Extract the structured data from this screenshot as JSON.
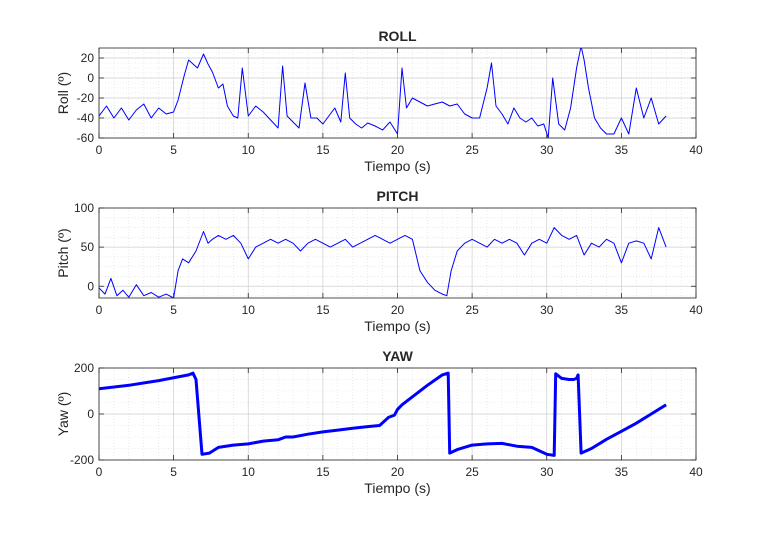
{
  "chart_data": [
    {
      "type": "line",
      "title": "ROLL",
      "xlabel": "Tiempo (s)",
      "ylabel": "Roll (º)",
      "xlim": [
        0,
        40
      ],
      "ylim": [
        -60,
        30
      ],
      "xticks": [
        0,
        5,
        10,
        15,
        20,
        25,
        30,
        35,
        40
      ],
      "yticks": [
        -60,
        -40,
        -20,
        0,
        20
      ],
      "grid": "major and minor dotted",
      "line_color": "#0000ff",
      "line_width": 1,
      "series": [
        {
          "x": [
            0,
            0.5,
            1,
            1.5,
            2,
            2.5,
            3,
            3.5,
            4,
            4.5,
            5,
            5.3,
            5.7,
            6,
            6.3,
            6.6,
            7,
            7.3,
            7.6,
            8,
            8.3,
            8.6,
            9,
            9.3,
            9.6,
            10,
            10.5,
            11,
            11.5,
            12,
            12.3,
            12.6,
            13,
            13.4,
            13.8,
            14.2,
            14.6,
            15,
            15.4,
            15.8,
            16.2,
            16.5,
            16.8,
            17.2,
            17.6,
            18,
            18.5,
            19,
            19.5,
            20,
            20.3,
            20.6,
            21,
            21.5,
            22,
            22.5,
            23,
            23.5,
            24,
            24.5,
            25,
            25.5,
            26,
            26.3,
            26.6,
            27,
            27.4,
            27.8,
            28.2,
            28.6,
            29,
            29.4,
            29.8,
            30.1,
            30.4,
            30.8,
            31.2,
            31.6,
            32,
            32.3,
            32.5,
            32.8,
            33.2,
            33.6,
            34,
            34.5,
            35,
            35.5,
            36,
            36.5,
            37,
            37.5,
            38
          ],
          "y": [
            -38,
            -28,
            -40,
            -30,
            -42,
            -32,
            -26,
            -40,
            -30,
            -36,
            -34,
            -22,
            2,
            18,
            14,
            10,
            24,
            14,
            6,
            -10,
            -6,
            -28,
            -38,
            -40,
            10,
            -38,
            -28,
            -34,
            -42,
            -50,
            12,
            -38,
            -44,
            -50,
            -5,
            -40,
            -40,
            -46,
            -38,
            -30,
            -44,
            5,
            -40,
            -46,
            -50,
            -45,
            -48,
            -52,
            -44,
            -56,
            10,
            -30,
            -20,
            -24,
            -28,
            -26,
            -24,
            -28,
            -26,
            -36,
            -40,
            -40,
            -10,
            15,
            -28,
            -36,
            -46,
            -30,
            -40,
            -44,
            -40,
            -48,
            -46,
            -60,
            0,
            -46,
            -52,
            -30,
            10,
            32,
            18,
            -10,
            -40,
            -50,
            -56,
            -56,
            -40,
            -56,
            -10,
            -40,
            -20,
            -46,
            -38
          ]
        }
      ]
    },
    {
      "type": "line",
      "title": "PITCH",
      "xlabel": "Tiempo (s)",
      "ylabel": "Pitch (º)",
      "xlim": [
        0,
        40
      ],
      "ylim": [
        -15,
        100
      ],
      "xticks": [
        0,
        5,
        10,
        15,
        20,
        25,
        30,
        35,
        40
      ],
      "yticks": [
        0,
        50,
        100
      ],
      "grid": "major and minor dotted",
      "line_color": "#0000ff",
      "line_width": 1,
      "series": [
        {
          "x": [
            0,
            0.4,
            0.8,
            1.2,
            1.6,
            2,
            2.5,
            3,
            3.5,
            4,
            4.5,
            5,
            5.3,
            5.6,
            6,
            6.5,
            7,
            7.3,
            7.6,
            8,
            8.5,
            9,
            9.5,
            10,
            10.5,
            11,
            11.5,
            12,
            12.5,
            13,
            13.5,
            14,
            14.5,
            15,
            15.5,
            16,
            16.5,
            17,
            17.5,
            18,
            18.5,
            19,
            19.5,
            20,
            20.5,
            21,
            21.5,
            22,
            22.5,
            23,
            23.3,
            23.6,
            24,
            24.5,
            25,
            25.5,
            26,
            26.5,
            27,
            27.5,
            28,
            28.5,
            29,
            29.5,
            30,
            30.5,
            31,
            31.5,
            32,
            32.5,
            33,
            33.5,
            34,
            34.5,
            35,
            35.5,
            36,
            36.5,
            37,
            37.5,
            38
          ],
          "y": [
            -2,
            -10,
            10,
            -12,
            -5,
            -14,
            2,
            -12,
            -8,
            -14,
            -10,
            -15,
            20,
            35,
            30,
            45,
            70,
            55,
            60,
            65,
            60,
            65,
            55,
            35,
            50,
            55,
            60,
            55,
            60,
            55,
            45,
            55,
            60,
            55,
            50,
            55,
            60,
            50,
            55,
            60,
            65,
            60,
            55,
            60,
            65,
            60,
            20,
            5,
            -5,
            -10,
            -12,
            20,
            45,
            55,
            60,
            55,
            50,
            60,
            55,
            60,
            55,
            40,
            55,
            60,
            55,
            75,
            65,
            60,
            65,
            40,
            55,
            50,
            60,
            55,
            30,
            55,
            58,
            55,
            35,
            75,
            50
          ]
        }
      ]
    },
    {
      "type": "line",
      "title": "YAW",
      "xlabel": "Tiempo (s)",
      "ylabel": "Yaw (º)",
      "xlim": [
        0,
        40
      ],
      "ylim": [
        -200,
        200
      ],
      "xticks": [
        0,
        5,
        10,
        15,
        20,
        25,
        30,
        35,
        40
      ],
      "yticks": [
        -200,
        0,
        200
      ],
      "grid": "major and minor dotted",
      "line_color": "#0000ff",
      "line_width": 3,
      "series": [
        {
          "x": [
            0,
            2,
            4,
            6,
            6.3,
            6.5,
            6.9,
            7.4,
            8,
            9,
            10,
            11,
            12,
            12.5,
            13,
            14,
            15,
            16,
            17,
            18,
            18.8,
            19.4,
            19.8,
            20,
            20.3,
            21,
            22,
            23,
            23.4,
            23.5,
            24,
            25,
            26,
            27,
            28,
            29,
            30,
            30.5,
            30.6,
            31,
            31.5,
            31.8,
            32,
            32.1,
            32.3,
            33,
            34,
            35,
            36,
            37,
            38
          ],
          "y": [
            110,
            125,
            145,
            170,
            178,
            150,
            -175,
            -170,
            -145,
            -135,
            -130,
            -118,
            -112,
            -100,
            -100,
            -88,
            -78,
            -70,
            -62,
            -55,
            -50,
            -15,
            -5,
            20,
            40,
            75,
            125,
            170,
            178,
            -170,
            -155,
            -135,
            -130,
            -128,
            -140,
            -145,
            -175,
            -180,
            175,
            155,
            150,
            150,
            155,
            170,
            -170,
            -150,
            -110,
            -75,
            -40,
            0,
            40
          ]
        }
      ]
    }
  ]
}
